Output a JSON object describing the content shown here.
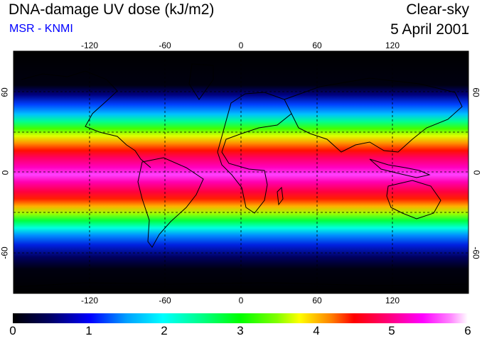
{
  "header": {
    "title": "DNA-damage UV dose (kJ/m2)",
    "subtitle": "MSR - KNMI",
    "mode": "Clear-sky",
    "date": "5 April 2001"
  },
  "map": {
    "longitude_ticks": [
      "-120",
      "-60",
      "0",
      "60",
      "120"
    ],
    "latitude_ticks_left": [
      "60",
      "0",
      "-60"
    ],
    "latitude_ticks_right": [
      "60",
      "0",
      "-60"
    ],
    "gridlines": "dashed",
    "coastlines": true
  },
  "colorbar": {
    "ticks": [
      "0",
      "1",
      "2",
      "3",
      "4",
      "5",
      "6"
    ],
    "min": 0,
    "max": 6,
    "colors": [
      "#000000",
      "#000060",
      "#0000ff",
      "#00a0ff",
      "#00ffff",
      "#00ff80",
      "#00ff00",
      "#80ff00",
      "#ffff00",
      "#ff8000",
      "#ff0000",
      "#ff0080",
      "#ff00ff",
      "#ff80ff",
      "#ffffff"
    ]
  }
}
